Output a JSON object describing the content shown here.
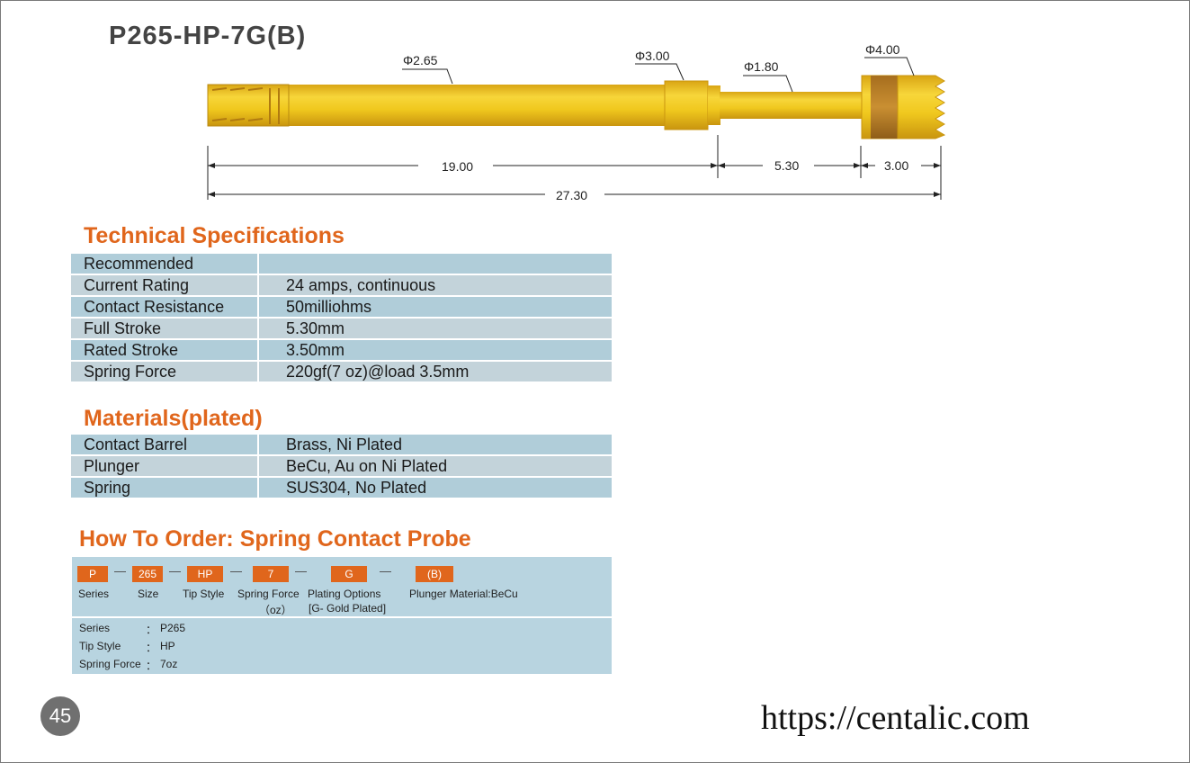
{
  "title": "P265-HP-7G(B)",
  "diagram": {
    "diameters": [
      "Φ2.65",
      "Φ3.00",
      "Φ1.80",
      "Φ4.00"
    ],
    "lengths": [
      "19.00",
      "5.30",
      "3.00",
      "27.30"
    ],
    "colors": {
      "gold": "#f0c81e",
      "gold_dark": "#d9a514",
      "band": "#b8802a"
    }
  },
  "tech": {
    "heading": "Technical Specifications",
    "rows": [
      {
        "label": "Recommended",
        "value": ""
      },
      {
        "label": "Current Rating",
        "value": "24 amps, continuous"
      },
      {
        "label": "Contact Resistance",
        "value": "50milliohms"
      },
      {
        "label": "Full Stroke",
        "value": "5.30mm"
      },
      {
        "label": "Rated Stroke",
        "value": "3.50mm"
      },
      {
        "label": "Spring Force",
        "value": "220gf(7 oz)@load 3.5mm"
      }
    ]
  },
  "materials": {
    "heading": "Materials(plated)",
    "rows": [
      {
        "label": "Contact Barrel",
        "value": "Brass, Ni Plated"
      },
      {
        "label": "Plunger",
        "value": "BeCu,  Au on Ni Plated"
      },
      {
        "label": "Spring",
        "value": "SUS304, No Plated"
      }
    ]
  },
  "order": {
    "heading": "How To Order: Spring Contact Probe",
    "codes": [
      "P",
      "265",
      "HP",
      "7",
      "G",
      "(B)"
    ],
    "dash": "—",
    "labels": [
      "Series",
      "Size",
      "Tip Style",
      "Spring  Force",
      "Plating Options",
      "Plunger Material:BeCu"
    ],
    "sublabels": [
      "（oz）",
      "[G- Gold Plated]"
    ],
    "details": [
      {
        "key": "Series",
        "sep": "：",
        "value": "P265"
      },
      {
        "key": "Tip Style",
        "sep": "：",
        "value": "HP"
      },
      {
        "key": "Spring Force",
        "sep": "：",
        "value": "7oz"
      }
    ]
  },
  "page_number": "45",
  "website": "https://centalic.com",
  "accent_color": "#e0661c"
}
